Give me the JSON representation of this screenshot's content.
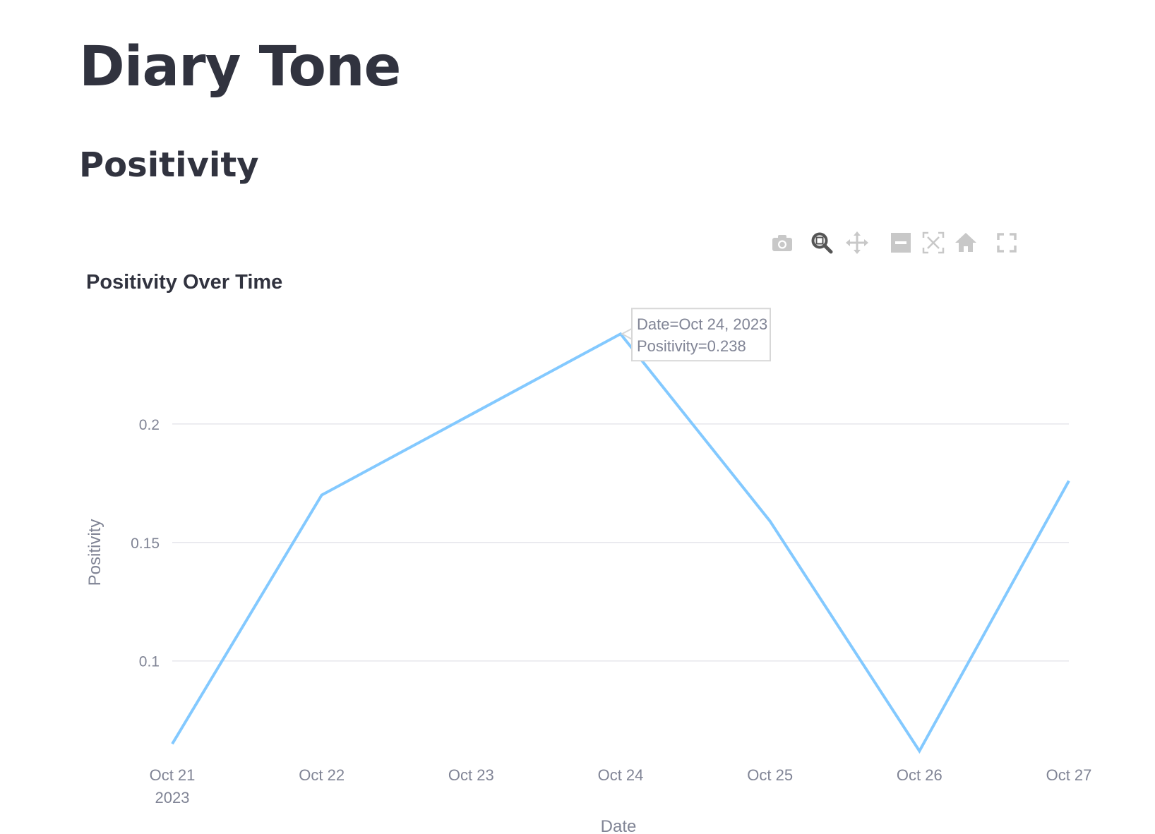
{
  "page": {
    "title": "Diary Tone",
    "section_title": "Positivity"
  },
  "modebar": {
    "buttons": [
      {
        "name": "camera-icon"
      },
      {
        "name": "zoom-icon"
      },
      {
        "name": "pan-icon"
      },
      {
        "name": "zoom-out-icon"
      },
      {
        "name": "autoscale-icon"
      },
      {
        "name": "reset-axes-icon"
      },
      {
        "name": "fullscreen-icon"
      }
    ]
  },
  "tooltip": {
    "line1": "Date=Oct 24, 2023",
    "line2": "Positivity=0.238"
  },
  "chart_data": {
    "type": "line",
    "title": "Positivity Over Time",
    "xlabel": "Date",
    "ylabel": "Positivity",
    "x": [
      "2023-10-21",
      "2023-10-22",
      "2023-10-23",
      "2023-10-24",
      "2023-10-25",
      "2023-10-26",
      "2023-10-27"
    ],
    "x_tick_labels": [
      "Oct 21",
      "Oct 22",
      "Oct 23",
      "Oct 24",
      "Oct 25",
      "Oct 26",
      "Oct 27"
    ],
    "x_tick_year": "2023",
    "y_tick_values": [
      0.1,
      0.15,
      0.2
    ],
    "y_tick_labels": [
      "0.1",
      "0.15",
      "0.2"
    ],
    "ylim": [
      0.0627,
      0.2479
    ],
    "series": [
      {
        "values": [
          0.065,
          0.17,
          0.204,
          0.238,
          0.159,
          0.062,
          0.176
        ],
        "color": "#83c9ff"
      }
    ],
    "grid": true,
    "hover_index": 3
  }
}
